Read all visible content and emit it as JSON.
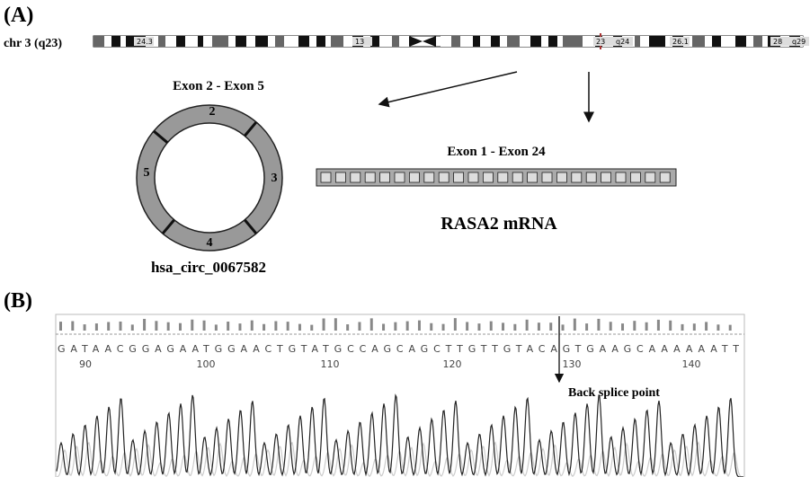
{
  "panel_a": {
    "label": "(A)",
    "chromosome": "chr 3 (q23)",
    "bands": [
      "24.3",
      "13",
      "23",
      "q24",
      "26.1",
      "28",
      "q29"
    ],
    "circ_title": "Exon 2 - Exon 5",
    "exons": [
      "2",
      "3",
      "4",
      "5"
    ],
    "circ_name": "hsa_circ_0067582",
    "mrna_title": "Exon 1 - Exon 24",
    "mrna_name": "RASA2  mRNA"
  },
  "panel_b": {
    "label": "(B)",
    "sequence": "GATAACGGAGAATGGAACTGTATGCCAGCAGCTTGTTGTACAGTGAAGCAAAAAATT",
    "positions": [
      "90",
      "100",
      "110",
      "120",
      "130",
      "140"
    ],
    "annotation": "Back splice point"
  }
}
